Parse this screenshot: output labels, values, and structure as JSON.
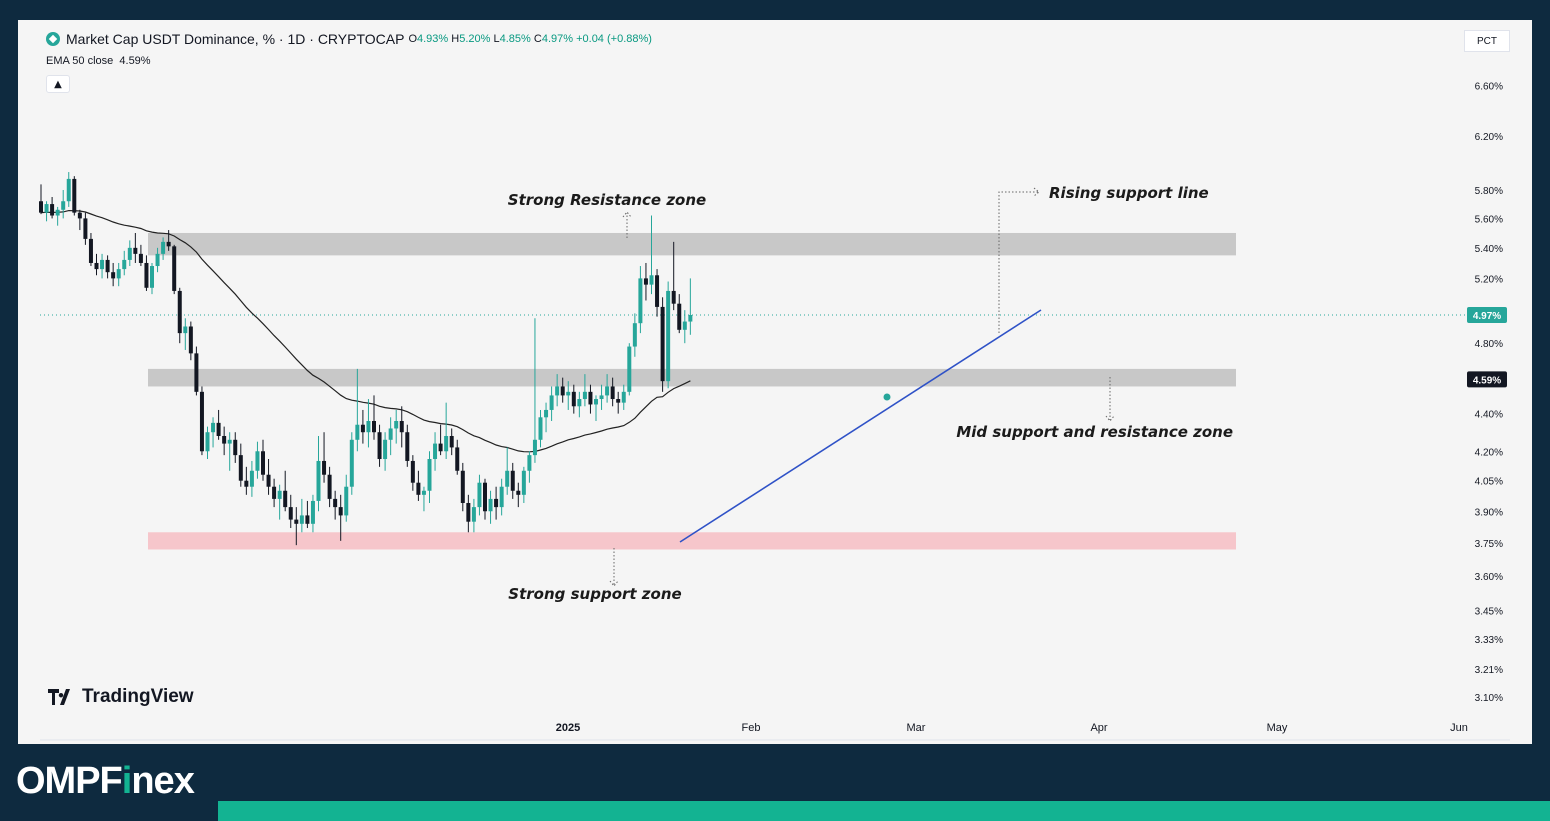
{
  "header": {
    "title": "Market Cap USDT Dominance, % · 1D · CRYPTOCAP",
    "ohlc": [
      {
        "k": "O",
        "v": "4.93%"
      },
      {
        "k": "H",
        "v": "5.20%"
      },
      {
        "k": "L",
        "v": "4.85%"
      },
      {
        "k": "C",
        "v": "4.97%"
      },
      {
        "k": "",
        "v": "+0.04 (+0.88%)"
      }
    ],
    "ema_label": "EMA 50 close",
    "ema_value": "4.59%",
    "collapse_icon": "chevron-up-icon",
    "scale_button": "PCT"
  },
  "branding": {
    "tradingview": "TradingView",
    "omp_pre": "OMPF",
    "omp_accent": "i",
    "omp_post": "nex",
    "accent_color": "#13b392",
    "dark_color": "#0e2a3f"
  },
  "chart_data": {
    "type": "candlestick",
    "symbol": "Market Cap USDT Dominance",
    "interval": "1D",
    "y_axis_ticks": [
      "6.60%",
      "6.20%",
      "5.80%",
      "5.60%",
      "5.40%",
      "5.20%",
      "4.80%",
      "4.40%",
      "4.20%",
      "4.05%",
      "3.90%",
      "3.75%",
      "3.60%",
      "3.45%",
      "3.33%",
      "3.21%",
      "3.10%"
    ],
    "x_axis_ticks": [
      "2025",
      "Feb",
      "Mar",
      "Apr",
      "May",
      "Jun"
    ],
    "last_price_label": "4.97%",
    "ema_price_label": "4.59%",
    "colors": {
      "up": "#26a69a",
      "down": "#131722",
      "ema": "#222222",
      "trendline": "#2f52c7",
      "zone_gray": "#c8c8c8",
      "zone_pink": "#f6c6cb"
    },
    "annotations": {
      "resistance": "Strong Resistance zone",
      "support": "Strong support zone",
      "mid": "Mid support and resistance zone",
      "rising": "Rising support line"
    },
    "zones": [
      {
        "name": "Strong Resistance zone",
        "from": 5.35,
        "to": 5.5
      },
      {
        "name": "Mid support and resistance zone",
        "from": 4.55,
        "to": 4.65
      },
      {
        "name": "Strong support zone",
        "from": 3.72,
        "to": 3.8
      }
    ],
    "candles": [
      [
        5.72,
        5.84,
        5.63,
        5.64
      ],
      [
        5.64,
        5.72,
        5.58,
        5.7
      ],
      [
        5.7,
        5.75,
        5.6,
        5.62
      ],
      [
        5.62,
        5.68,
        5.55,
        5.66
      ],
      [
        5.66,
        5.8,
        5.6,
        5.72
      ],
      [
        5.72,
        5.93,
        5.68,
        5.88
      ],
      [
        5.88,
        5.9,
        5.62,
        5.64
      ],
      [
        5.64,
        5.66,
        5.52,
        5.6
      ],
      [
        5.6,
        5.64,
        5.42,
        5.46
      ],
      [
        5.46,
        5.5,
        5.28,
        5.3
      ],
      [
        5.3,
        5.36,
        5.22,
        5.26
      ],
      [
        5.26,
        5.36,
        5.2,
        5.32
      ],
      [
        5.32,
        5.35,
        5.2,
        5.24
      ],
      [
        5.24,
        5.3,
        5.15,
        5.2
      ],
      [
        5.2,
        5.3,
        5.15,
        5.26
      ],
      [
        5.26,
        5.38,
        5.22,
        5.32
      ],
      [
        5.32,
        5.45,
        5.28,
        5.4
      ],
      [
        5.4,
        5.5,
        5.3,
        5.36
      ],
      [
        5.36,
        5.42,
        5.28,
        5.3
      ],
      [
        5.3,
        5.35,
        5.12,
        5.14
      ],
      [
        5.14,
        5.3,
        5.1,
        5.28
      ],
      [
        5.28,
        5.4,
        5.24,
        5.36
      ],
      [
        5.36,
        5.47,
        5.32,
        5.44
      ],
      [
        5.44,
        5.52,
        5.38,
        5.41
      ],
      [
        5.41,
        5.42,
        5.1,
        5.12
      ],
      [
        5.12,
        5.14,
        4.8,
        4.86
      ],
      [
        4.86,
        4.95,
        4.76,
        4.9
      ],
      [
        4.9,
        4.93,
        4.7,
        4.74
      ],
      [
        4.74,
        4.78,
        4.5,
        4.52
      ],
      [
        4.52,
        4.55,
        4.18,
        4.2
      ],
      [
        4.2,
        4.33,
        4.16,
        4.3
      ],
      [
        4.3,
        4.38,
        4.22,
        4.35
      ],
      [
        4.35,
        4.42,
        4.26,
        4.28
      ],
      [
        4.28,
        4.33,
        4.18,
        4.24
      ],
      [
        4.24,
        4.3,
        4.1,
        4.26
      ],
      [
        4.26,
        4.3,
        4.14,
        4.18
      ],
      [
        4.18,
        4.24,
        4.02,
        4.05
      ],
      [
        4.05,
        4.12,
        3.98,
        4.02
      ],
      [
        4.02,
        4.15,
        3.97,
        4.1
      ],
      [
        4.1,
        4.25,
        4.06,
        4.2
      ],
      [
        4.2,
        4.26,
        4.05,
        4.08
      ],
      [
        4.08,
        4.16,
        3.98,
        4.02
      ],
      [
        4.02,
        4.06,
        3.92,
        3.96
      ],
      [
        3.96,
        4.03,
        3.86,
        4.0
      ],
      [
        4.0,
        4.1,
        3.9,
        3.92
      ],
      [
        3.92,
        3.98,
        3.82,
        3.86
      ],
      [
        3.86,
        3.92,
        3.74,
        3.84
      ],
      [
        3.84,
        3.96,
        3.8,
        3.88
      ],
      [
        3.88,
        3.95,
        3.82,
        3.84
      ],
      [
        3.84,
        3.98,
        3.8,
        3.95
      ],
      [
        3.95,
        4.28,
        3.9,
        4.15
      ],
      [
        4.15,
        4.3,
        4.04,
        4.08
      ],
      [
        4.08,
        4.12,
        3.92,
        3.96
      ],
      [
        3.96,
        4.0,
        3.86,
        3.92
      ],
      [
        3.92,
        3.98,
        3.76,
        3.88
      ],
      [
        3.88,
        4.08,
        3.85,
        4.02
      ],
      [
        4.02,
        4.3,
        3.98,
        4.26
      ],
      [
        4.26,
        4.65,
        4.2,
        4.34
      ],
      [
        4.34,
        4.42,
        4.24,
        4.3
      ],
      [
        4.3,
        4.48,
        4.22,
        4.36
      ],
      [
        4.36,
        4.5,
        4.26,
        4.3
      ],
      [
        4.3,
        4.34,
        4.12,
        4.16
      ],
      [
        4.16,
        4.3,
        4.1,
        4.26
      ],
      [
        4.26,
        4.38,
        4.18,
        4.32
      ],
      [
        4.32,
        4.42,
        4.24,
        4.36
      ],
      [
        4.36,
        4.44,
        4.22,
        4.3
      ],
      [
        4.3,
        4.34,
        4.12,
        4.15
      ],
      [
        4.15,
        4.18,
        4.0,
        4.04
      ],
      [
        4.04,
        4.1,
        3.95,
        3.98
      ],
      [
        3.98,
        4.02,
        3.9,
        4.0
      ],
      [
        4.0,
        4.2,
        3.94,
        4.16
      ],
      [
        4.16,
        4.3,
        4.1,
        4.24
      ],
      [
        4.24,
        4.34,
        4.18,
        4.2
      ],
      [
        4.2,
        4.46,
        4.16,
        4.28
      ],
      [
        4.28,
        4.32,
        4.18,
        4.22
      ],
      [
        4.22,
        4.26,
        4.08,
        4.1
      ],
      [
        4.1,
        4.14,
        3.9,
        3.94
      ],
      [
        3.94,
        3.98,
        3.8,
        3.85
      ],
      [
        3.85,
        3.96,
        3.8,
        3.92
      ],
      [
        3.92,
        4.08,
        3.88,
        4.04
      ],
      [
        4.04,
        4.06,
        3.86,
        3.9
      ],
      [
        3.9,
        4.0,
        3.84,
        3.96
      ],
      [
        3.96,
        4.02,
        3.86,
        3.92
      ],
      [
        3.92,
        4.06,
        3.88,
        4.02
      ],
      [
        4.02,
        4.22,
        3.98,
        4.1
      ],
      [
        4.1,
        4.14,
        3.96,
        4.0
      ],
      [
        4.0,
        4.04,
        3.92,
        3.98
      ],
      [
        3.98,
        4.12,
        3.94,
        4.1
      ],
      [
        4.1,
        4.2,
        4.04,
        4.18
      ],
      [
        4.18,
        4.95,
        4.14,
        4.26
      ],
      [
        4.26,
        4.42,
        4.22,
        4.38
      ],
      [
        4.38,
        4.46,
        4.3,
        4.42
      ],
      [
        4.42,
        4.55,
        4.36,
        4.5
      ],
      [
        4.5,
        4.62,
        4.44,
        4.55
      ],
      [
        4.55,
        4.6,
        4.46,
        4.5
      ],
      [
        4.5,
        4.58,
        4.42,
        4.52
      ],
      [
        4.52,
        4.56,
        4.4,
        4.44
      ],
      [
        4.44,
        4.52,
        4.38,
        4.48
      ],
      [
        4.48,
        4.62,
        4.44,
        4.52
      ],
      [
        4.52,
        4.56,
        4.4,
        4.45
      ],
      [
        4.45,
        4.5,
        4.36,
        4.48
      ],
      [
        4.48,
        4.56,
        4.42,
        4.5
      ],
      [
        4.5,
        4.62,
        4.46,
        4.55
      ],
      [
        4.55,
        4.6,
        4.44,
        4.48
      ],
      [
        4.48,
        4.52,
        4.4,
        4.46
      ],
      [
        4.46,
        4.56,
        4.42,
        4.52
      ],
      [
        4.52,
        4.8,
        4.5,
        4.78
      ],
      [
        4.78,
        4.98,
        4.72,
        4.92
      ],
      [
        4.92,
        5.28,
        4.86,
        5.2
      ],
      [
        5.2,
        5.3,
        5.06,
        5.16
      ],
      [
        5.16,
        5.62,
        5.1,
        5.22
      ],
      [
        5.22,
        5.26,
        4.96,
        5.02
      ],
      [
        5.02,
        5.08,
        4.52,
        4.58
      ],
      [
        4.58,
        5.18,
        4.54,
        5.12
      ],
      [
        5.12,
        5.44,
        5.0,
        5.04
      ],
      [
        5.04,
        5.1,
        4.86,
        4.88
      ],
      [
        4.88,
        5.0,
        4.8,
        4.93
      ],
      [
        4.93,
        5.2,
        4.85,
        4.97
      ]
    ]
  }
}
